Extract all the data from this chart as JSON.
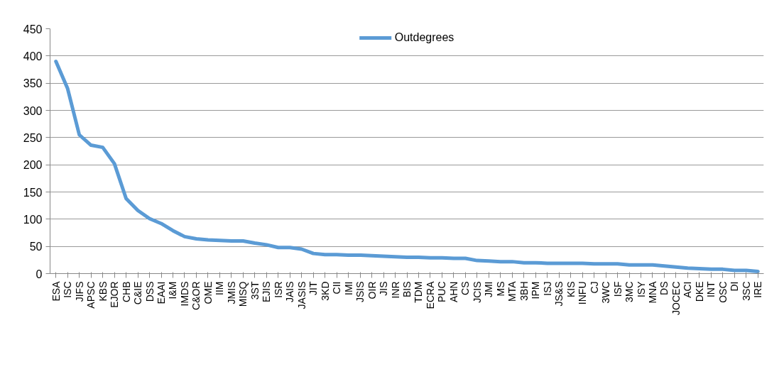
{
  "chart_data": {
    "type": "line",
    "categories": [
      "ESA",
      "ISC",
      "JIFS",
      "APSC",
      "KBS",
      "EJOR",
      "CHB",
      "C&IE",
      "DSS",
      "EAAI",
      "I&M",
      "IMDS",
      "C&OR",
      "OME",
      "IIM",
      "JMIS",
      "MISQ",
      "3ST",
      "EJIS",
      "ISR",
      "JAIS",
      "JASIS",
      "JIT",
      "3KD",
      "CII",
      "IMI",
      "JSIS",
      "OIR",
      "JIS",
      "INR",
      "BIS",
      "TDM",
      "ECRA",
      "PUC",
      "AHN",
      "CS",
      "JCIS",
      "JMI",
      "MS",
      "MTA",
      "3BH",
      "IPM",
      "ISJ",
      "JS&S",
      "KIS",
      "INFU",
      "CJ",
      "3WC",
      "ISF",
      "3MC",
      "ISY",
      "MNA",
      "DS",
      "JOCEC",
      "ACI",
      "DKE",
      "INT",
      "OSC",
      "DI",
      "3SC",
      "IRE"
    ],
    "series": [
      {
        "name": "Outdegrees",
        "color": "#5b9bd5",
        "values": [
          390,
          340,
          255,
          236,
          232,
          202,
          138,
          116,
          101,
          92,
          79,
          68,
          64,
          62,
          61,
          60,
          60,
          56,
          53,
          48,
          48,
          45,
          37,
          35,
          35,
          34,
          34,
          33,
          32,
          31,
          30,
          30,
          29,
          29,
          28,
          28,
          24,
          23,
          22,
          22,
          20,
          20,
          19,
          19,
          19,
          19,
          18,
          18,
          18,
          16,
          16,
          16,
          14,
          12,
          10,
          9,
          8,
          8,
          6,
          6,
          4
        ]
      }
    ],
    "ylim": [
      0,
      450
    ],
    "yticks": [
      0,
      50,
      100,
      150,
      200,
      250,
      300,
      350,
      400,
      450
    ],
    "grid": "y",
    "legend": "top",
    "marker": "none",
    "line_style": "solid"
  }
}
